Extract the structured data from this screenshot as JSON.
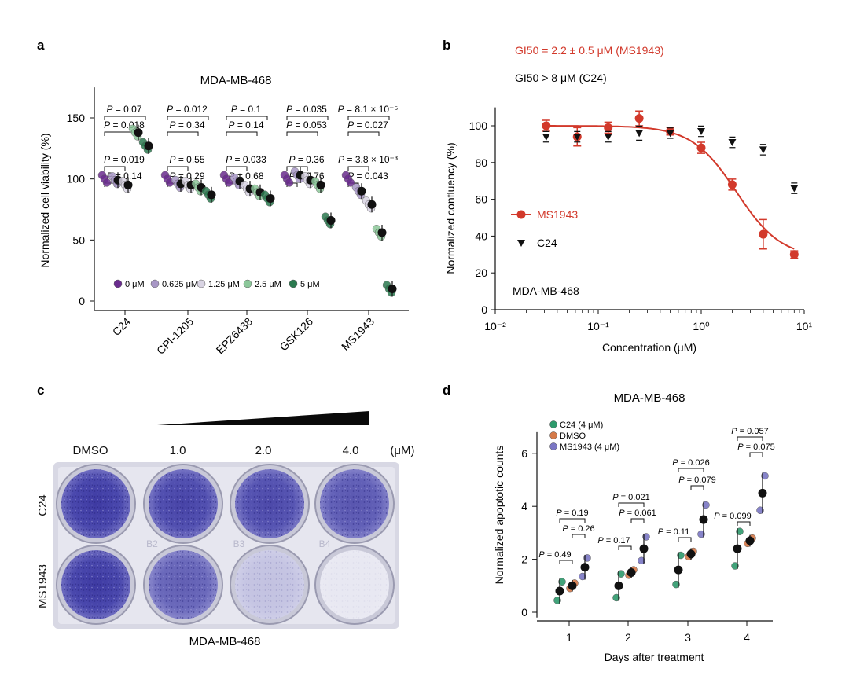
{
  "panel_labels": {
    "a": "a",
    "b": "b",
    "c": "c",
    "d": "d"
  },
  "colors": {
    "dose0": "#6a2c8f",
    "dose0625": "#a897c6",
    "dose125": "#d9d4e3",
    "dose25": "#8cc79a",
    "dose5": "#2b7a4f",
    "mean": "#111111",
    "ms1943": "#d2392b",
    "c24": "#111111",
    "d_c24": "#2e9a6c",
    "d_dmso": "#d47a4a",
    "d_ms": "#7b77c4"
  },
  "chart_data": [
    {
      "panel": "a",
      "type": "scatter",
      "title": "MDA-MB-468",
      "ylabel": "Normalized cell viability (%)",
      "ylim": [
        0,
        175
      ],
      "yticks": [
        0,
        50,
        100,
        150
      ],
      "categories": [
        "C24",
        "CPI-1205",
        "EPZ6438",
        "GSK126",
        "MS1943"
      ],
      "series": [
        {
          "name": "0 μM",
          "values": [
            100,
            100,
            100,
            100,
            100
          ]
        },
        {
          "name": "0.625 μM",
          "values": [
            99,
            96,
            98,
            103,
            90
          ]
        },
        {
          "name": "1.25 μM",
          "values": [
            95,
            95,
            92,
            99,
            79
          ]
        },
        {
          "name": "2.5 μM",
          "values": [
            138,
            93,
            89,
            95,
            56
          ]
        },
        {
          "name": "5 μM",
          "values": [
            127,
            87,
            84,
            66,
            10
          ]
        }
      ],
      "pvalue_labels": [
        [
          "P = 0.07",
          "P = 0.018",
          "P = 0.019",
          "P = 0.14"
        ],
        [
          "P = 0.012",
          "P = 0.34",
          "P = 0.55",
          "P = 0.29"
        ],
        [
          "P = 0.1",
          "P = 0.14",
          "P = 0.033",
          "P = 0.68"
        ],
        [
          "P = 0.035",
          "P = 0.053",
          "P = 0.36",
          "P = 0.76"
        ],
        [
          "P = 8.1 × 10⁻⁵",
          "P = 0.027",
          "P = 3.8 × 10⁻³",
          "P = 0.043"
        ]
      ],
      "legend_placement": "bottom-inside"
    },
    {
      "panel": "b",
      "type": "scatter",
      "title": "",
      "annotations": [
        "GI50 = 2.2 ± 0.5 μM (MS1943)",
        "GI50 > 8 μM (C24)",
        "MDA-MB-468"
      ],
      "xlabel": "Concentration (μM)",
      "ylabel": "Normalized confluency (%)",
      "xscale": "log",
      "xlim": [
        0.01,
        10
      ],
      "xtick_labels": [
        "10⁻²",
        "10⁻¹",
        "10⁰",
        "10¹"
      ],
      "ylim": [
        0,
        110
      ],
      "yticks": [
        0,
        20,
        40,
        60,
        80,
        100
      ],
      "x": [
        0.03125,
        0.0625,
        0.125,
        0.25,
        0.5,
        1,
        2,
        4,
        8
      ],
      "series": [
        {
          "name": "MS1943",
          "values": [
            100,
            94,
            99,
            104,
            97,
            88,
            68,
            41,
            30
          ],
          "errors": [
            3,
            5,
            3,
            4,
            2,
            3,
            3,
            8,
            2
          ],
          "fit": {
            "top": 100,
            "bottom": 28,
            "gi50": 2.2,
            "hill": 2
          }
        },
        {
          "name": "C24",
          "values": [
            94,
            94,
            94,
            96,
            96,
            97,
            91,
            87,
            66
          ],
          "errors": [
            2,
            2,
            2,
            3,
            2,
            2,
            2,
            2,
            2
          ]
        }
      ],
      "legend_placement": "left"
    },
    {
      "panel": "d",
      "type": "scatter",
      "title": "MDA-MB-468",
      "xlabel": "Days after treatment",
      "ylabel": "Normalized apoptotic counts",
      "categories": [
        "1",
        "2",
        "3",
        "4"
      ],
      "ylim": [
        -0.2,
        6.8
      ],
      "yticks": [
        0,
        2,
        4,
        6
      ],
      "series": [
        {
          "name": "C24 (4 μM)",
          "values": [
            0.8,
            1.0,
            1.6,
            2.4
          ]
        },
        {
          "name": "DMSO",
          "values": [
            1.0,
            1.5,
            2.2,
            2.7
          ]
        },
        {
          "name": "MS1943 (4 μM)",
          "values": [
            1.7,
            2.4,
            3.5,
            4.5
          ]
        }
      ],
      "pvalue_labels": [
        [
          "P = 0.19",
          "P = 0.26",
          "P = 0.49"
        ],
        [
          "P = 0.021",
          "P = 0.061",
          "P = 0.17"
        ],
        [
          "P = 0.026",
          "P = 0.079",
          "P = 0.11"
        ],
        [
          "P = 0.057",
          "P = 0.075",
          "P = 0.099"
        ]
      ],
      "legend_placement": "top-left"
    }
  ],
  "plate": {
    "concentrations": [
      "DMSO",
      "1.0",
      "2.0",
      "4.0"
    ],
    "unit": "(μM)",
    "rows": [
      "C24",
      "MS1943"
    ],
    "caption": "MDA-MB-468",
    "well_labels": [
      "B2",
      "B3",
      "B4"
    ],
    "stain_intensity": [
      [
        1.0,
        0.95,
        0.92,
        0.85
      ],
      [
        1.0,
        0.8,
        0.25,
        0.04
      ]
    ]
  }
}
